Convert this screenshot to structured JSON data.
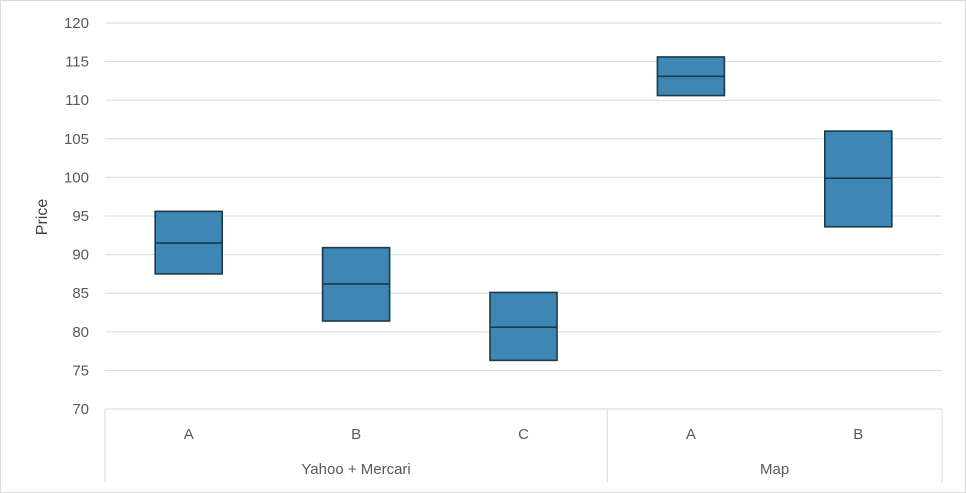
{
  "chart_data": {
    "type": "box",
    "ylabel": "Price",
    "ylim": [
      70,
      120
    ],
    "yticks": [
      70,
      75,
      80,
      85,
      90,
      95,
      100,
      105,
      110,
      115,
      120
    ],
    "grid": true,
    "box_color": "#3e87b4",
    "box_stroke": "#1b3a4b",
    "groups": [
      {
        "name": "Yahoo + Mercari",
        "items": [
          {
            "label": "A",
            "low": 87.5,
            "median": 91.5,
            "high": 95.6
          },
          {
            "label": "B",
            "low": 81.4,
            "median": 86.2,
            "high": 90.9
          },
          {
            "label": "C",
            "low": 76.3,
            "median": 80.6,
            "high": 85.1
          }
        ]
      },
      {
        "name": "Map",
        "items": [
          {
            "label": "A",
            "low": 110.6,
            "median": 113.1,
            "high": 115.6
          },
          {
            "label": "B",
            "low": 93.6,
            "median": 99.9,
            "high": 106.0
          }
        ]
      }
    ]
  }
}
